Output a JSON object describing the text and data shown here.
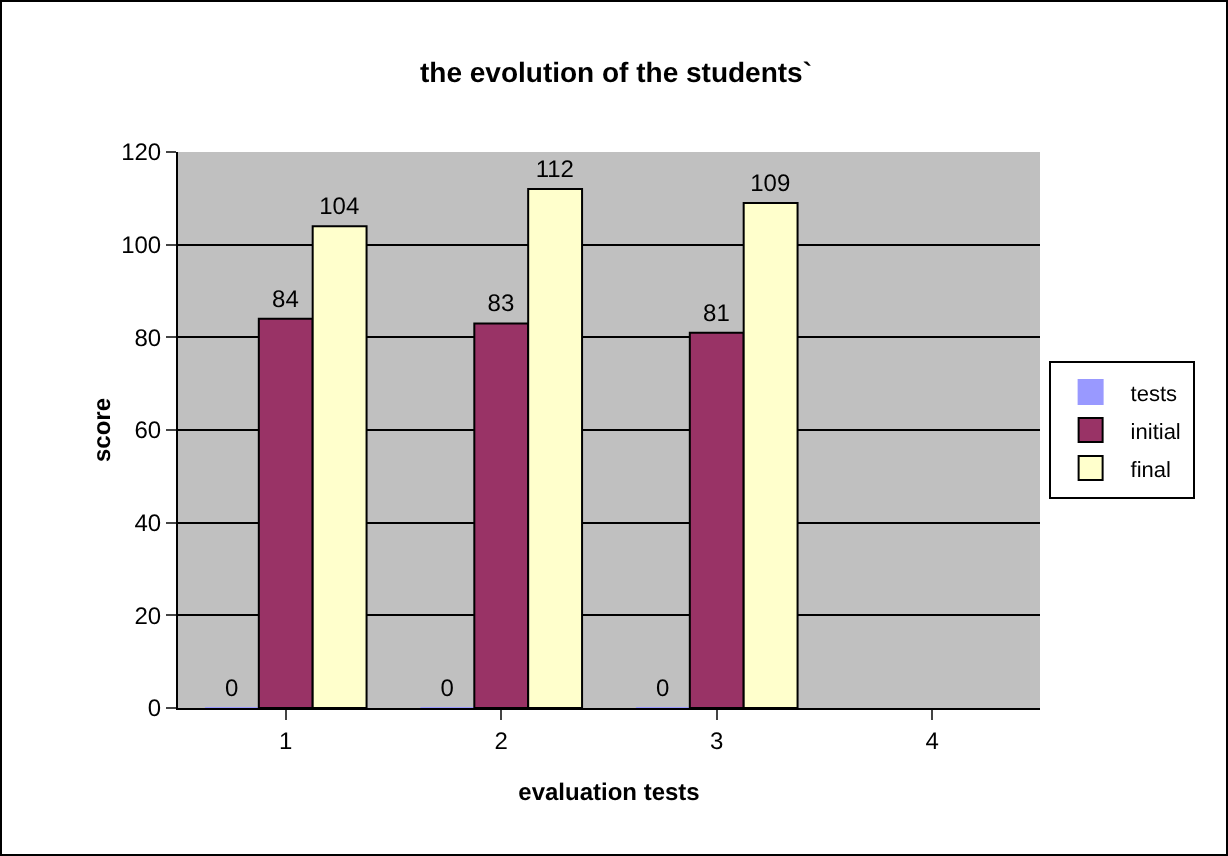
{
  "chart_data": {
    "type": "bar",
    "title": "the evolution of the students`",
    "xlabel": "evaluation tests",
    "ylabel": "score",
    "categories": [
      "1",
      "2",
      "3",
      "4"
    ],
    "series": [
      {
        "name": "tests",
        "color": "#9999ff",
        "values": [
          0,
          0,
          0,
          null
        ]
      },
      {
        "name": "initial",
        "color": "#993366",
        "values": [
          84,
          83,
          81,
          null
        ]
      },
      {
        "name": "final",
        "color": "#ffffcc",
        "values": [
          104,
          112,
          109,
          null
        ]
      }
    ],
    "ylim": [
      0,
      120
    ],
    "yticks": [
      0,
      20,
      40,
      60,
      80,
      100,
      120
    ],
    "grid": "y",
    "legend": "right",
    "data_labels": true
  }
}
